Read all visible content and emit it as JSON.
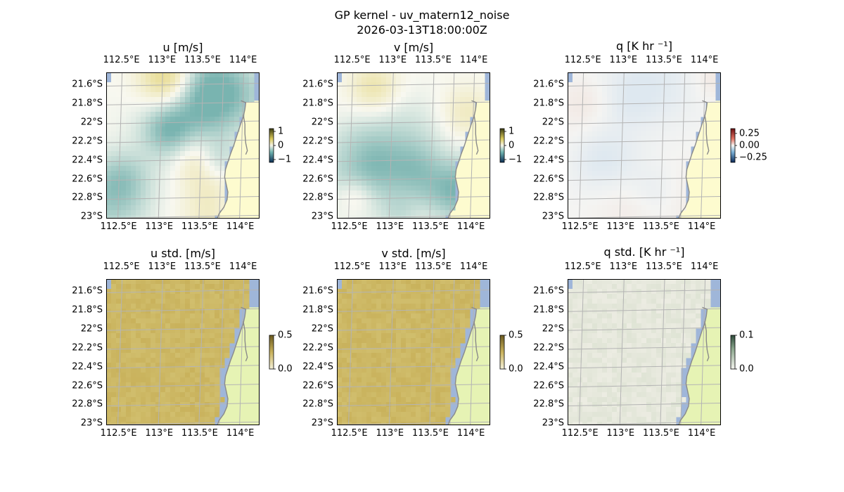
{
  "figure": {
    "title_line1": "GP kernel - uv_matern12_noise",
    "title_line2": "2026-03-13T18:00:00Z"
  },
  "map_extent": {
    "lon": [
      112.33,
      114.22
    ],
    "lat": [
      -23.02,
      -21.47
    ]
  },
  "lon_ticks": [
    {
      "value": 112.5,
      "label": "112.5°E"
    },
    {
      "value": 113.0,
      "label": "113°E"
    },
    {
      "value": 113.5,
      "label": "113.5°E"
    },
    {
      "value": 114.0,
      "label": "114°E"
    }
  ],
  "lat_ticks": [
    {
      "value": -21.6,
      "label": "21.6°S"
    },
    {
      "value": -21.8,
      "label": "21.8°S"
    },
    {
      "value": -22.0,
      "label": "22°S"
    },
    {
      "value": -22.2,
      "label": "22.2°S"
    },
    {
      "value": -22.4,
      "label": "22.4°S"
    },
    {
      "value": -22.6,
      "label": "22.6°S"
    },
    {
      "value": -22.8,
      "label": "22.8°S"
    },
    {
      "value": -23.0,
      "label": "23°S"
    }
  ],
  "panels": [
    {
      "id": "u",
      "title": "u [m/s]",
      "field": "diverging",
      "colormap": "yellow-white-teal",
      "cbar_range": [
        -1.2,
        1.2
      ],
      "cbar_ticks": [
        {
          "value": 1,
          "label": "1"
        },
        {
          "value": 0,
          "label": "0"
        },
        {
          "value": -1,
          "label": "−1"
        }
      ]
    },
    {
      "id": "v",
      "title": "v [m/s]",
      "field": "diverging",
      "colormap": "yellow-white-teal",
      "cbar_range": [
        -1.2,
        1.2
      ],
      "cbar_ticks": [
        {
          "value": 1,
          "label": "1"
        },
        {
          "value": 0,
          "label": "0"
        },
        {
          "value": -1,
          "label": "−1"
        }
      ]
    },
    {
      "id": "q",
      "title": "q [K hr ⁻¹]",
      "field": "faint-diverging",
      "colormap": "red-white-blue",
      "cbar_range": [
        -0.35,
        0.35
      ],
      "cbar_ticks": [
        {
          "value": 0.25,
          "label": "0.25"
        },
        {
          "value": 0.0,
          "label": "0.00"
        },
        {
          "value": -0.25,
          "label": "−0.25"
        }
      ]
    },
    {
      "id": "u_std",
      "title": "u std. [m/s]",
      "field": "std-high",
      "colormap": "khaki",
      "cbar_range": [
        0.0,
        0.5
      ],
      "cbar_ticks": [
        {
          "value": 0.5,
          "label": "0.5"
        },
        {
          "value": 0.0,
          "label": "0.0"
        }
      ]
    },
    {
      "id": "v_std",
      "title": "v std. [m/s]",
      "field": "std-high",
      "colormap": "khaki",
      "cbar_range": [
        0.0,
        0.5
      ],
      "cbar_ticks": [
        {
          "value": 0.5,
          "label": "0.5"
        },
        {
          "value": 0.0,
          "label": "0.0"
        }
      ]
    },
    {
      "id": "q_std",
      "title": "q std. [K hr ⁻¹]",
      "field": "std-low",
      "colormap": "pale",
      "cbar_range": [
        0.0,
        0.1
      ],
      "cbar_ticks": [
        {
          "value": 0.1,
          "label": "0.1"
        },
        {
          "value": 0.0,
          "label": "0.0"
        }
      ]
    }
  ],
  "colors": {
    "ocean": "#9fb6d9",
    "land_fill": "#fdfbcf",
    "land_fill_std": "#e6f3b4",
    "coastline": "#8a8a8a",
    "gridline": "#b4b4b4",
    "khaki": "#c9b25c",
    "teal": "#4f9d9b",
    "yellow": "#dcc84f"
  }
}
